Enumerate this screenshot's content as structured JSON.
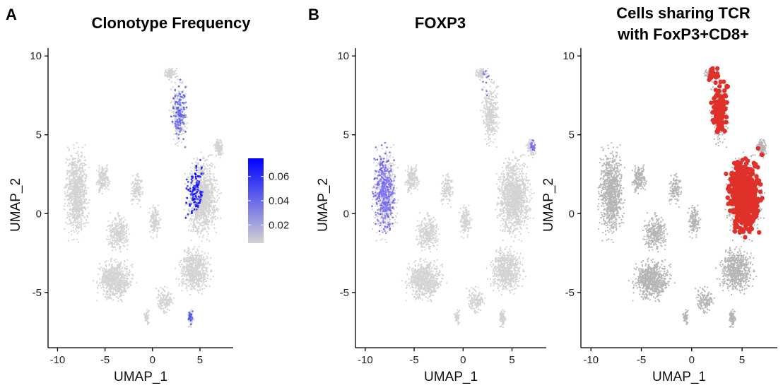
{
  "figure": {
    "panel_letters": [
      "A",
      "B"
    ]
  },
  "chart_data": [
    {
      "type": "scatter",
      "title": "Clonotype Frequency",
      "xlabel": "UMAP_1",
      "ylabel": "UMAP_2",
      "xlim": [
        -11,
        8.5
      ],
      "ylim": [
        -8.5,
        10.5
      ],
      "xticks": [
        -10,
        -5,
        0,
        5
      ],
      "yticks": [
        -5,
        0,
        5,
        10
      ],
      "xtick_labels": [
        "-10",
        "-5",
        "0",
        "5"
      ],
      "ytick_labels": [
        "-5",
        "0",
        "5",
        "10"
      ],
      "color_by": "clonotype frequency",
      "colorbar": {
        "ticks": [
          0.02,
          0.04,
          0.06
        ],
        "tick_labels": [
          "0.02",
          "0.04",
          "0.06"
        ],
        "range": [
          0.005,
          0.075
        ],
        "colors": [
          "#d3d3d3",
          "#0000ff"
        ]
      },
      "highlight_regions": [
        {
          "center": [
            3.6,
            2.1
          ],
          "radius": [
            1.8,
            2.4
          ],
          "level": 0.07
        },
        {
          "center": [
            3.0,
            6.0
          ],
          "radius": [
            1.2,
            2.5
          ],
          "level": 0.04
        },
        {
          "center": [
            4.0,
            -6.5
          ],
          "radius": [
            0.5,
            0.9
          ],
          "level": 0.05
        }
      ],
      "background_color": "#d3d3d3"
    },
    {
      "type": "scatter",
      "title": "FOXP3",
      "xlabel": "UMAP_1",
      "ylabel": "UMAP_2",
      "xlim": [
        -11,
        8.5
      ],
      "ylim": [
        -8.5,
        10.5
      ],
      "xticks": [
        -10,
        -5,
        0,
        5
      ],
      "yticks": [
        -5,
        0,
        5,
        10
      ],
      "xtick_labels": [
        "-10",
        "-5",
        "0",
        "5"
      ],
      "ytick_labels": [
        "-5",
        "0",
        "5",
        "10"
      ],
      "color_by": "FOXP3 expression",
      "highlight_regions": [
        {
          "center": [
            -8.3,
            1.8
          ],
          "radius": [
            1.5,
            3.6
          ],
          "level": 0.9
        },
        {
          "center": [
            7.3,
            4.5
          ],
          "radius": [
            0.5,
            0.5
          ],
          "level": 0.8
        },
        {
          "center": [
            2.3,
            8.2
          ],
          "radius": [
            0.4,
            1.0
          ],
          "level": 0.6
        }
      ],
      "background_color": "#d3d3d3",
      "highlight_color": "#6a5cf0"
    },
    {
      "type": "scatter",
      "title": "Cells sharing TCR\nwith FoxP3+CD8+",
      "title_lines": [
        "Cells sharing TCR",
        "with FoxP3+CD8+"
      ],
      "xlabel": "UMAP_1",
      "ylabel": "UMAP_2",
      "xlim": [
        -11,
        8.5
      ],
      "ylim": [
        -8.5,
        10.5
      ],
      "xticks": [
        -10,
        -5,
        0,
        5
      ],
      "yticks": [
        -5,
        0,
        5,
        10
      ],
      "xtick_labels": [
        "-10",
        "-5",
        "0",
        "5"
      ],
      "ytick_labels": [
        "-5",
        "0",
        "5",
        "10"
      ],
      "color_by": "shares TCR with FoxP3+CD8+",
      "highlight_regions": [
        {
          "center": [
            5.4,
            1.4
          ],
          "radius": [
            2.4,
            3.2
          ],
          "level": 1
        },
        {
          "center": [
            2.8,
            7.5
          ],
          "radius": [
            1.2,
            2.5
          ],
          "level": 0.6
        }
      ],
      "background_color": "#b5b5b5",
      "highlight_color": "#e0302a"
    }
  ]
}
